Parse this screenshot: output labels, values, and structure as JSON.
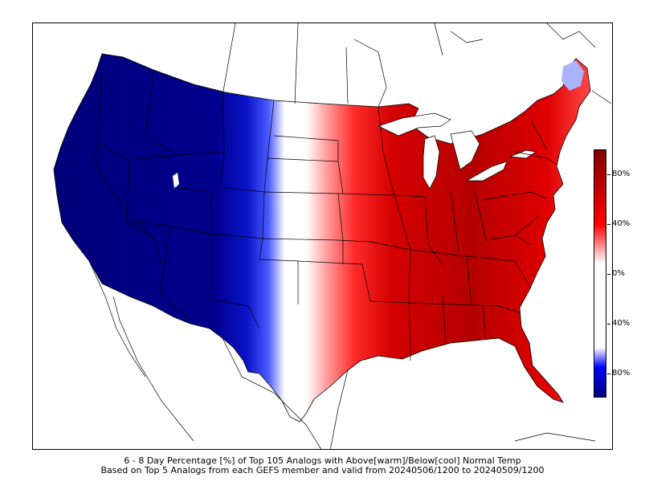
{
  "caption": {
    "line1": "6 - 8 Day Percentage [%] of Top 105 Analogs with Above[warm]/Below[cool] Normal Temp",
    "line2": "Based on Top 5 Analogs from each GEFS member and valid from 20240506/1200 to 20240509/1200"
  },
  "colorbar": {
    "ticks": [
      "80%",
      "40%",
      "0%",
      "40%",
      "80%"
    ],
    "colors": {
      "warm_max": "#800000",
      "warm_mid": "#ff0000",
      "neutral": "#ffffff",
      "cool_mid": "#0000ff",
      "cool_max": "#000080"
    }
  },
  "map": {
    "region": "CONUS",
    "field": "percent of analogs above/below normal temperature"
  }
}
